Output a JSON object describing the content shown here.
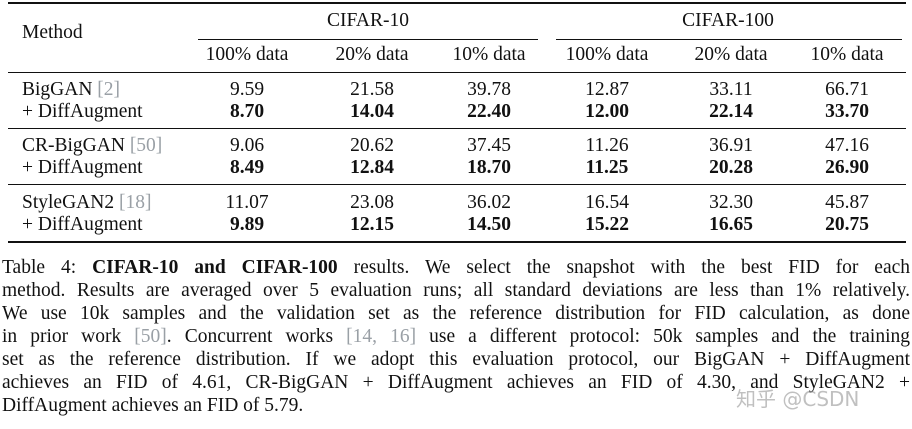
{
  "table": {
    "method_header": "Method",
    "group_headers": [
      "CIFAR-10",
      "CIFAR-100"
    ],
    "sub_headers": [
      "100% data",
      "20% data",
      "10% data",
      "100% data",
      "20% data",
      "10% data"
    ],
    "groups": [
      {
        "method": "BigGAN",
        "ref": "[2]",
        "base": [
          "9.59",
          "21.58",
          "39.78",
          "12.87",
          "33.11",
          "66.71"
        ],
        "aug_label": "+ DiffAugment",
        "aug": [
          "8.70",
          "14.04",
          "22.40",
          "12.00",
          "22.14",
          "33.70"
        ]
      },
      {
        "method": "CR-BigGAN",
        "ref": "[50]",
        "base": [
          "9.06",
          "20.62",
          "37.45",
          "11.26",
          "36.91",
          "47.16"
        ],
        "aug_label": "+ DiffAugment",
        "aug": [
          "8.49",
          "12.84",
          "18.70",
          "11.25",
          "20.28",
          "26.90"
        ]
      },
      {
        "method": "StyleGAN2",
        "ref": "[18]",
        "base": [
          "11.07",
          "23.08",
          "36.02",
          "16.54",
          "32.30",
          "45.87"
        ],
        "aug_label": "+ DiffAugment",
        "aug": [
          "9.89",
          "12.15",
          "14.50",
          "15.22",
          "16.65",
          "20.75"
        ]
      }
    ]
  },
  "caption": {
    "label": "Table 4:",
    "bold": "CIFAR-10 and CIFAR-100",
    "lines": [
      " results. We select the snapshot with the best FID for each",
      "method. Results are averaged over 5 evaluation runs; all standard deviations are less than 1% relatively.",
      "We use 10k samples and the validation set as the reference distribution for FID calculation, as done",
      "in prior work ",
      ". Concurrent works ",
      "use a different protocol: 50k samples and the training",
      "set as the reference distribution. If we adopt this evaluation protocol, our BigGAN + DiffAugment",
      "achieves an FID of 4.61, CR-BigGAN + DiffAugment achieves an FID of 4.30, and StyleGAN2 +",
      "DiffAugment achieves an FID of 5.79."
    ],
    "refs": [
      "[50]",
      "[14, 16]"
    ]
  },
  "watermark": "知乎 @CSDN"
}
